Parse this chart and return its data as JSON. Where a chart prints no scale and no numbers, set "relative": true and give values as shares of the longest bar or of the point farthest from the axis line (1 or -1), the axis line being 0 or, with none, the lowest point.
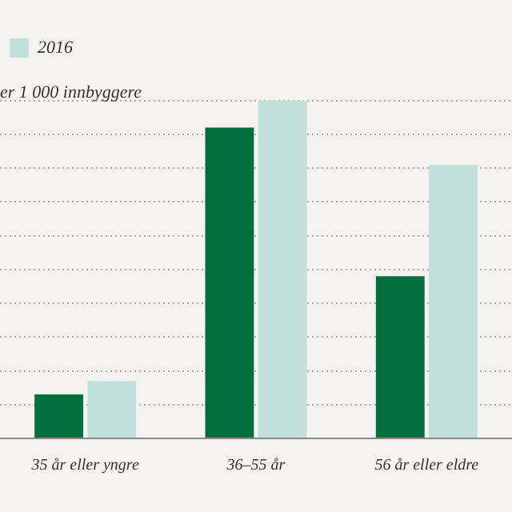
{
  "chart_data": {
    "type": "bar",
    "relative": true,
    "ylabel": "er 1 000 innbyggere",
    "categories": [
      "35 år eller yngre",
      "36–55 år",
      "56 år eller eldre"
    ],
    "series": [
      {
        "color": "#006f3c",
        "values": [
          0.13,
          0.92,
          0.48
        ]
      },
      {
        "name": "2016",
        "color": "#c3dfda",
        "values": [
          0.17,
          1.0,
          0.81
        ]
      }
    ],
    "grid": "y",
    "legend": "top left"
  }
}
